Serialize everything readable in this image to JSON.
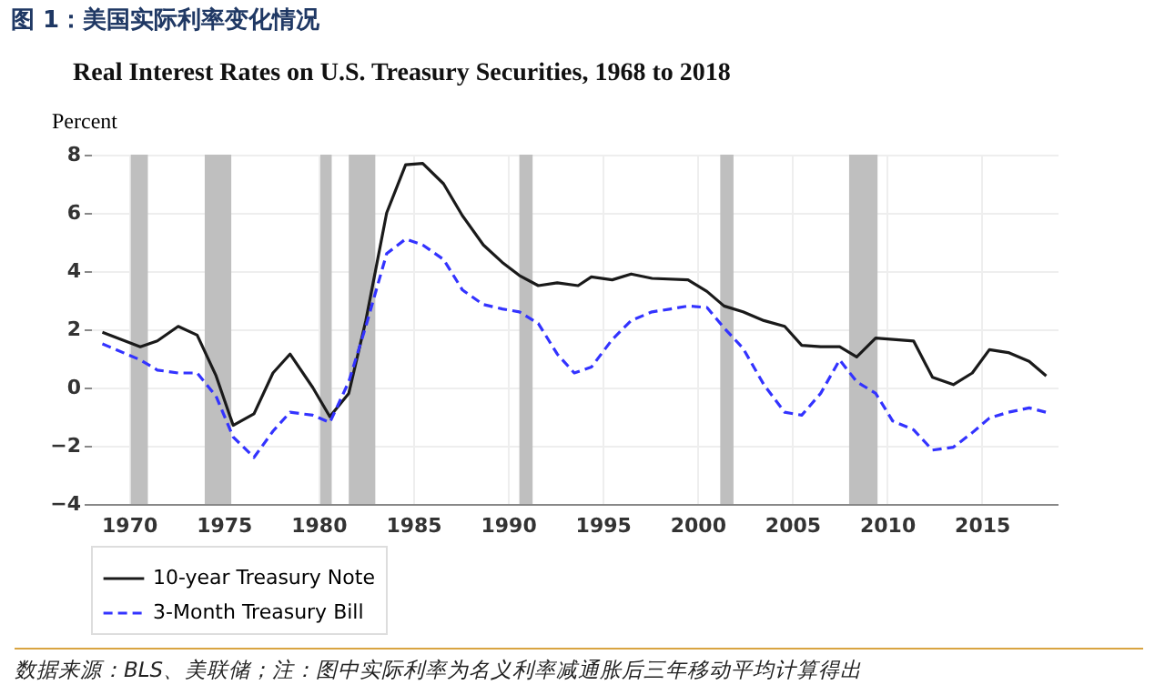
{
  "chart_data": {
    "type": "line",
    "title": "图 1：美国实际利率变化情况",
    "subtitle": "Real Interest Rates on U.S. Treasury Securities, 1968 to 2018",
    "ylabel": "Percent",
    "xlim": [
      1968,
      2019
    ],
    "xticks": [
      1970,
      1975,
      1980,
      1985,
      1990,
      1995,
      2000,
      2005,
      2010,
      2015
    ],
    "ylim": [
      -4,
      8
    ],
    "yticks": [
      -4,
      -2,
      0,
      2,
      4,
      6,
      8
    ],
    "grid": true,
    "legend": "bottom",
    "series": [
      {
        "name": "10-year Treasury Note",
        "color": "#1a1a1a",
        "line_style": "solid",
        "x": [
          1968.6,
          1970.6,
          1971.5,
          1972.6,
          1973.6,
          1974.6,
          1975.5,
          1976.6,
          1977.6,
          1978.5,
          1979.7,
          1980.6,
          1981.6,
          1982.5,
          1983.6,
          1984.6,
          1985.5,
          1986.6,
          1987.6,
          1988.7,
          1989.7,
          1990.6,
          1991.6,
          1992.6,
          1993.7,
          1994.4,
          1995.5,
          1996.5,
          1997.6,
          1999.5,
          2000.5,
          2001.4,
          2002.4,
          2003.5,
          2004.6,
          2005.5,
          2006.5,
          2007.5,
          2008.4,
          2009.4,
          2011.4,
          2012.4,
          2013.5,
          2014.5,
          2015.4,
          2016.4,
          2017.5,
          2018.4
        ],
        "values": [
          1.9,
          1.4,
          1.6,
          2.1,
          1.8,
          0.4,
          -1.3,
          -0.9,
          0.5,
          1.15,
          0,
          -1.0,
          -0.2,
          2.3,
          6.0,
          7.65,
          7.7,
          7.0,
          5.9,
          4.9,
          4.3,
          3.85,
          3.5,
          3.6,
          3.5,
          3.8,
          3.7,
          3.9,
          3.75,
          3.7,
          3.3,
          2.8,
          2.6,
          2.3,
          2.1,
          1.45,
          1.4,
          1.4,
          1.05,
          1.7,
          1.6,
          0.35,
          0.1,
          0.5,
          1.3,
          1.2,
          0.9,
          0.4
        ]
      },
      {
        "name": "3-Month Treasury Bill",
        "color": "#3333ff",
        "line_style": "dashed",
        "x": [
          1968.6,
          1970.6,
          1971.5,
          1972.6,
          1973.6,
          1974.6,
          1975.5,
          1976.6,
          1977.6,
          1978.5,
          1979.7,
          1980.6,
          1981.6,
          1982.5,
          1983.6,
          1984.6,
          1985.5,
          1986.6,
          1987.6,
          1988.7,
          1989.7,
          1990.6,
          1991.6,
          1992.6,
          1993.5,
          1994.4,
          1995.5,
          1996.5,
          1997.6,
          1998.6,
          1999.5,
          2000.5,
          2001.4,
          2002.4,
          2003.5,
          2004.6,
          2005.5,
          2006.5,
          2007.5,
          2008.4,
          2009.4,
          2010.3,
          2011.4,
          2012.4,
          2013.5,
          2014.5,
          2015.4,
          2016.4,
          2017.5,
          2018.4
        ],
        "values": [
          1.5,
          0.95,
          0.6,
          0.5,
          0.5,
          -0.3,
          -1.7,
          -2.4,
          -1.5,
          -0.85,
          -0.95,
          -1.2,
          0.2,
          2.1,
          4.6,
          5.1,
          4.9,
          4.4,
          3.35,
          2.85,
          2.7,
          2.6,
          2.2,
          1.15,
          0.5,
          0.7,
          1.65,
          2.3,
          2.6,
          2.7,
          2.8,
          2.75,
          2.05,
          1.35,
          0.1,
          -0.85,
          -0.95,
          -0.2,
          0.95,
          0.2,
          -0.2,
          -1.15,
          -1.45,
          -2.15,
          -2.05,
          -1.55,
          -1.05,
          -0.85,
          -0.7,
          -0.85
        ]
      }
    ],
    "bands": [
      {
        "axis": "x",
        "from": 1970.1,
        "to": 1971.0,
        "color": "#bfbfbf"
      },
      {
        "axis": "x",
        "from": 1974.0,
        "to": 1975.4,
        "color": "#bfbfbf"
      },
      {
        "axis": "x",
        "from": 1980.1,
        "to": 1980.7,
        "color": "#bfbfbf"
      },
      {
        "axis": "x",
        "from": 1981.6,
        "to": 1983.0,
        "color": "#bfbfbf"
      },
      {
        "axis": "x",
        "from": 1990.6,
        "to": 1991.3,
        "color": "#bfbfbf"
      },
      {
        "axis": "x",
        "from": 2001.2,
        "to": 2001.9,
        "color": "#bfbfbf"
      },
      {
        "axis": "x",
        "from": 2008.0,
        "to": 2009.5,
        "color": "#bfbfbf"
      }
    ],
    "annotations": [
      "数据来源：BLS、美联储；注：图中实际利率为名义利率减通胀后三年移动平均计算得出"
    ]
  }
}
